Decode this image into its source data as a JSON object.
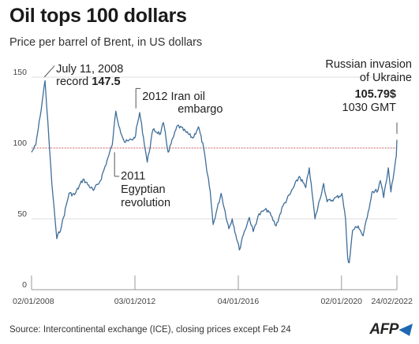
{
  "title": "Oil tops 100 dollars",
  "subtitle": "Price per barrel of Brent, in US dollars",
  "source": "Source:  Intercontinental exchange (ICE),  closing prices except Feb 24",
  "logo": "AFP",
  "colors": {
    "line": "#3f6e99",
    "refline": "#d9534f",
    "grid": "#dddddd",
    "axis": "#999999"
  },
  "chart_data": {
    "type": "line",
    "ylim": [
      0,
      160
    ],
    "yticks": [
      0,
      50,
      100,
      150
    ],
    "xlim": [
      "2008-01-02",
      "2022-02-24"
    ],
    "xticks": [
      "02/01/2008",
      "03/01/2012",
      "04/01/2016",
      "02/01/2020",
      "24/02/2022"
    ],
    "xticks_dates": [
      "2008-01-02",
      "2012-01-03",
      "2016-01-04",
      "2020-01-02",
      "2022-02-24"
    ],
    "reference_line": 100,
    "grid": "horizontal",
    "series": [
      {
        "x": [
          "2008-01-02",
          "2008-03-01",
          "2008-05-01",
          "2008-07-11",
          "2008-09-01",
          "2008-10-15",
          "2008-12-24",
          "2009-03-01",
          "2009-06-15",
          "2009-09-01",
          "2009-12-31",
          "2010-05-25",
          "2010-09-01",
          "2010-12-31",
          "2011-02-15",
          "2011-04-08",
          "2011-06-01",
          "2011-08-10",
          "2011-10-01",
          "2011-12-31",
          "2012-02-20",
          "2012-03-10",
          "2012-06-25",
          "2012-09-15",
          "2012-12-31",
          "2013-02-08",
          "2013-04-17",
          "2013-08-28",
          "2013-12-31",
          "2014-04-01",
          "2014-06-19",
          "2014-09-01",
          "2014-10-15",
          "2014-12-01",
          "2015-01-13",
          "2015-05-06",
          "2015-08-24",
          "2015-10-10",
          "2016-01-20",
          "2016-03-01",
          "2016-06-08",
          "2016-08-02",
          "2016-10-10",
          "2016-12-31",
          "2017-03-01",
          "2017-06-21",
          "2017-09-25",
          "2017-12-31",
          "2018-05-17",
          "2018-08-15",
          "2018-10-03",
          "2018-12-24",
          "2019-04-25",
          "2019-06-12",
          "2019-09-16",
          "2019-12-31",
          "2020-01-08",
          "2020-02-28",
          "2020-03-31",
          "2020-04-21",
          "2020-06-08",
          "2020-08-25",
          "2020-11-02",
          "2020-12-31",
          "2021-03-08",
          "2021-06-01",
          "2021-07-05",
          "2021-08-20",
          "2021-10-25",
          "2021-12-01",
          "2021-12-31",
          "2022-01-31",
          "2022-02-15",
          "2022-02-24"
        ],
        "y": [
          97,
          102,
          122,
          147.5,
          108,
          75,
          36,
          45,
          68,
          67,
          78,
          70,
          77,
          95,
          102,
          126,
          114,
          104,
          105,
          107,
          120,
          125,
          90,
          113,
          110,
          118,
          97,
          116,
          111,
          107,
          115,
          100,
          84,
          70,
          46,
          68,
          43,
          50,
          28,
          37,
          51,
          41,
          52,
          56,
          56,
          45,
          59,
          67,
          80,
          72,
          86,
          50,
          75,
          62,
          64,
          67,
          68,
          50,
          22,
          19,
          42,
          45,
          38,
          51,
          69,
          70,
          77,
          65,
          86,
          69,
          78,
          89,
          94,
          105.79
        ]
      }
    ],
    "annotations": [
      {
        "date": "2008-07-11",
        "text": [
          "July 11, 2008",
          "record"
        ],
        "value_label": "147.5"
      },
      {
        "date": "2012-03-01",
        "text": [
          "2012",
          "Iran oil",
          "embargo"
        ]
      },
      {
        "date": "2011-02-15",
        "text": [
          "2011",
          "Egyptian",
          "revolution"
        ]
      },
      {
        "date": "2022-02-24",
        "text": [
          "Russian invasion",
          "of Ukraine",
          "1030 GMT"
        ],
        "value_label": "105.79$"
      }
    ]
  }
}
